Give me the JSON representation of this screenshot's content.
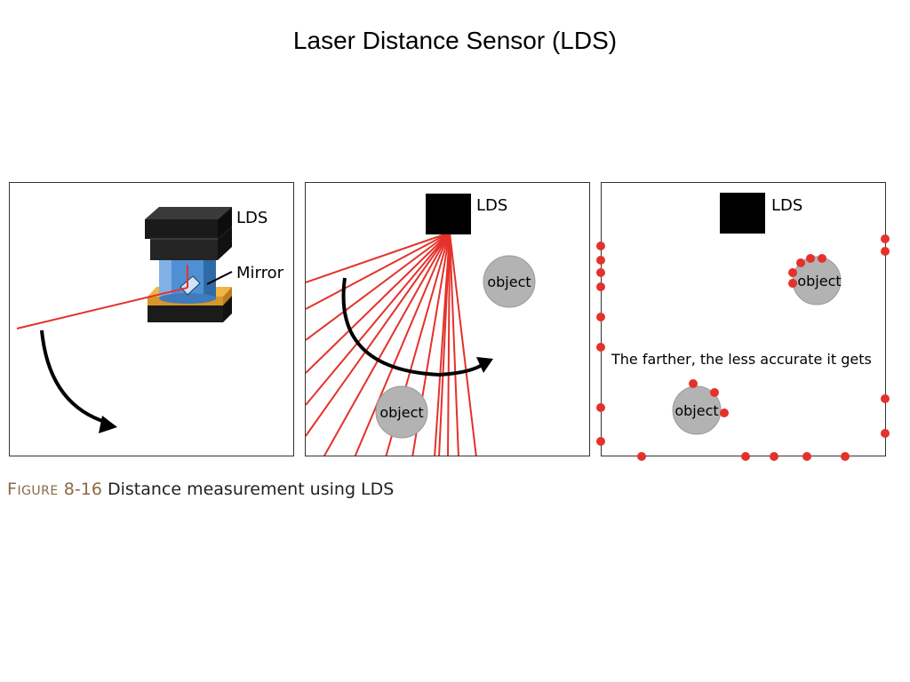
{
  "title": "Laser Distance Sensor (LDS)",
  "panel1": {
    "lds_label": "LDS",
    "mirror_label": "Mirror"
  },
  "panel2": {
    "lds_label": "LDS",
    "object_label_1": "object",
    "object_label_2": "object"
  },
  "panel3": {
    "lds_label": "LDS",
    "object_label_1": "object",
    "object_label_2": "object",
    "note": "The farther, the less accurate it gets"
  },
  "caption": {
    "figure_word": "Figure",
    "figure_first": "F",
    "figure_rest": "IGURE",
    "figure_number": "8-16",
    "text": "Distance measurement using LDS"
  },
  "colors": {
    "laser": "#e4322b",
    "object": "#b3b3b3",
    "sensor": "#000000",
    "base_gold": "#e2a43a",
    "cylinder": "#4a86c8"
  }
}
